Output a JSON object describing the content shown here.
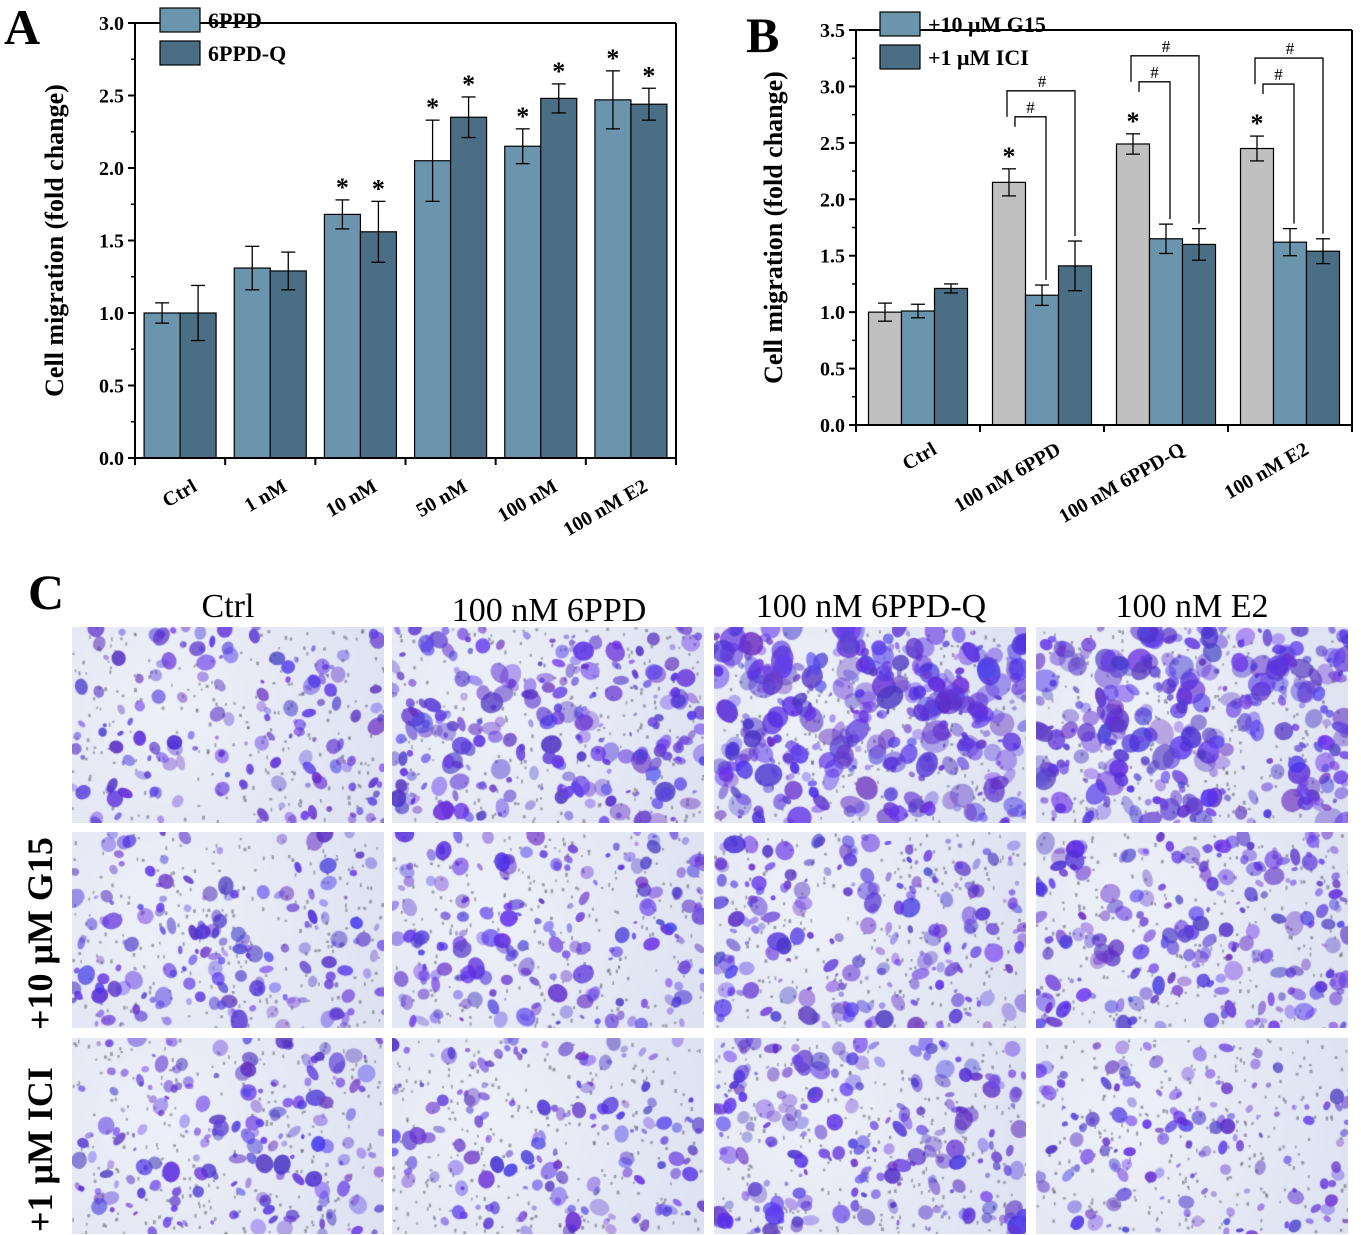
{
  "panels": {
    "a": "A",
    "b": "B",
    "c": "C"
  },
  "chart_data": [
    {
      "type": "bar",
      "ylabel": "Cell migration (fold change)",
      "ylim": [
        0,
        3.0
      ],
      "yticks": [
        "0.0",
        "0.5",
        "1.0",
        "1.5",
        "2.0",
        "2.5",
        "3.0"
      ],
      "ytick_values": [
        0,
        0.5,
        1.0,
        1.5,
        2.0,
        2.5,
        3.0
      ],
      "categories": [
        "Ctrl",
        "1 nM",
        "10 nM",
        "50 nM",
        "100 nM",
        "100 nM E2"
      ],
      "legend_position": "top-left",
      "series": [
        {
          "name": "6PPD",
          "color": "#6b95ad",
          "values": [
            1.0,
            1.31,
            1.68,
            2.05,
            2.15,
            2.47
          ],
          "errors": [
            0.07,
            0.15,
            0.1,
            0.28,
            0.12,
            0.2
          ],
          "marks": [
            "",
            "",
            "*",
            "*",
            "*",
            "*"
          ]
        },
        {
          "name": "6PPD-Q",
          "color": "#4a6e84",
          "values": [
            1.0,
            1.29,
            1.56,
            2.35,
            2.48,
            2.44
          ],
          "errors": [
            0.19,
            0.13,
            0.21,
            0.14,
            0.1,
            0.11
          ],
          "marks": [
            "",
            "",
            "*",
            "*",
            "*",
            "*"
          ]
        }
      ]
    },
    {
      "type": "bar",
      "ylabel": "Cell migration (fold change)",
      "ylim": [
        0,
        3.5
      ],
      "yticks": [
        "0.0",
        "0.5",
        "1.0",
        "1.5",
        "2.0",
        "2.5",
        "3.0",
        "3.5"
      ],
      "ytick_values": [
        0,
        0.5,
        1.0,
        1.5,
        2.0,
        2.5,
        3.0,
        3.5
      ],
      "categories": [
        "Ctrl",
        "100 nM 6PPD",
        "100 nM 6PPD-Q",
        "100 nM E2"
      ],
      "legend_position": "top-left",
      "series": [
        {
          "name": "",
          "color": "#c0c0c0",
          "values": [
            1.0,
            2.15,
            2.49,
            2.45
          ],
          "errors": [
            0.08,
            0.12,
            0.09,
            0.11
          ],
          "marks": [
            "",
            "*",
            "*",
            "*"
          ]
        },
        {
          "name": "+10 μM G15",
          "color": "#6b95ad",
          "values": [
            1.01,
            1.15,
            1.65,
            1.62
          ],
          "errors": [
            0.06,
            0.09,
            0.13,
            0.12
          ],
          "marks": [
            "",
            "",
            "",
            ""
          ]
        },
        {
          "name": "+1 μM ICI",
          "color": "#4a6e84",
          "values": [
            1.21,
            1.41,
            1.6,
            1.54
          ],
          "errors": [
            0.04,
            0.22,
            0.14,
            0.11
          ],
          "marks": [
            "",
            "",
            "",
            ""
          ]
        }
      ],
      "significance_mark": "#"
    }
  ],
  "micrographs": {
    "columns": [
      "Ctrl",
      "100 nM 6PPD",
      "100 nM 6PPD-Q",
      "100 nM E2"
    ],
    "rows": [
      "",
      "+10 μM G15",
      "+1 μM ICI"
    ],
    "stain_density": [
      [
        0.35,
        0.65,
        0.95,
        0.9
      ],
      [
        0.4,
        0.45,
        0.5,
        0.55
      ],
      [
        0.45,
        0.35,
        0.55,
        0.3
      ]
    ],
    "stain_color": "#5a3fd0"
  }
}
